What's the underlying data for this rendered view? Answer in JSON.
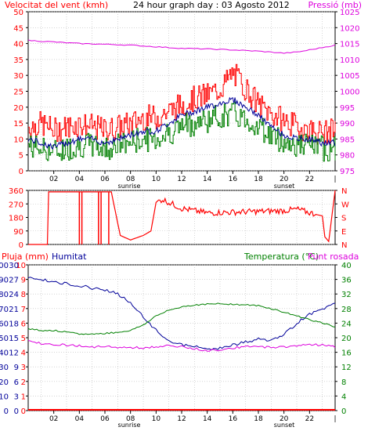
{
  "header": {
    "left_title": "Velocitat del vent (kmh)",
    "center_title": "24 hour graph day : 03 Agosto 2012",
    "right_title": "Pressió (mb)"
  },
  "panel3_header": {
    "left1": "Pluja (mm)",
    "left2": "Humitat",
    "right": "Temperatura (°C)",
    "right2": "Punt rosada"
  },
  "markers": {
    "sunrise": "sunrise",
    "sunset": "sunset"
  },
  "colors": {
    "wind_gust": "#ff0000",
    "wind_avg": "#008000",
    "pressure": "#dd00dd",
    "direction": "#ff0000",
    "humidity": "#000099",
    "temperature": "#008000",
    "dewpoint": "#dd00dd",
    "rain": "#ff0000",
    "grid": "#bbbbbb"
  },
  "chart_data": [
    {
      "type": "line",
      "title": "24 hour graph day : 03 Agosto 2012",
      "xlabel": "",
      "x_ticks": [
        "02",
        "04",
        "06",
        "08",
        "10",
        "12",
        "14",
        "16",
        "18",
        "20",
        "22"
      ],
      "y_left": {
        "label": "Velocitat del vent (kmh)",
        "range": [
          0,
          50
        ],
        "ticks": [
          "0",
          "5",
          "10",
          "15",
          "20",
          "25",
          "30",
          "35",
          "40",
          "45",
          "50"
        ]
      },
      "y_right": {
        "label": "Pressió (mb)",
        "range": [
          975,
          1025
        ],
        "ticks": [
          "975",
          "980",
          "985",
          "990",
          "995",
          "1000",
          "1005",
          "1010",
          "1015",
          "1020",
          "1025"
        ]
      },
      "series": [
        {
          "name": "Velocitat del vent (kmh)",
          "axis": "left",
          "x": [
            0,
            1,
            2,
            3,
            4,
            5,
            6,
            7,
            8,
            9,
            10,
            11,
            12,
            13,
            14,
            15,
            16,
            17,
            18,
            19,
            20,
            21,
            22,
            23,
            24
          ],
          "gust": [
            13,
            14,
            12,
            13,
            14,
            13,
            12,
            13,
            14,
            16,
            16,
            18,
            20,
            22,
            23,
            25,
            30,
            25,
            20,
            17,
            15,
            13,
            12,
            11,
            12
          ],
          "avg": [
            8,
            7,
            6,
            7,
            8,
            8,
            7,
            8,
            9,
            10,
            10,
            12,
            14,
            15,
            16,
            17,
            18,
            16,
            14,
            11,
            9,
            8,
            8,
            7,
            7
          ]
        },
        {
          "name": "Pressió (mb)",
          "axis": "right",
          "x": [
            0,
            2,
            4,
            6,
            8,
            10,
            12,
            14,
            16,
            18,
            20,
            21,
            22,
            24
          ],
          "y": [
            1016,
            1015.5,
            1015,
            1014.8,
            1014.5,
            1014,
            1013.5,
            1013.3,
            1013,
            1012.6,
            1012,
            1012.3,
            1013,
            1014.5
          ]
        }
      ]
    },
    {
      "type": "line",
      "title": "",
      "x_ticks": [
        "02",
        "04",
        "06",
        "08",
        "10",
        "12",
        "14",
        "16",
        "18",
        "20",
        "22"
      ],
      "y_left": {
        "label": "",
        "range": [
          0,
          360
        ],
        "ticks": [
          "0",
          "90",
          "180",
          "270",
          "360"
        ]
      },
      "y_right": {
        "label": "",
        "ticks": [
          "N",
          "E",
          "S",
          "W",
          "N"
        ]
      },
      "series": [
        {
          "name": "",
          "x": [
            0,
            1.5,
            1.6,
            5,
            6.5,
            7.2,
            8,
            9,
            9.6,
            10,
            10.5,
            12,
            14,
            16,
            18,
            20,
            21,
            22.5,
            23,
            23.2,
            23.5,
            24
          ],
          "y": [
            0,
            0,
            350,
            350,
            350,
            60,
            30,
            60,
            90,
            280,
            300,
            240,
            210,
            215,
            220,
            225,
            235,
            200,
            190,
            50,
            20,
            360
          ]
        }
      ]
    },
    {
      "type": "line",
      "title": "",
      "x_ticks": [
        "02",
        "04",
        "06",
        "08",
        "10",
        "12",
        "14",
        "16",
        "18",
        "20",
        "22"
      ],
      "y_left_rain": {
        "label": "Pluja (mm)",
        "range": [
          0,
          10
        ],
        "ticks": [
          "0",
          "1",
          "2",
          "3",
          "4",
          "5",
          "6",
          "7",
          "8",
          "9",
          "10"
        ]
      },
      "y_left_humidity": {
        "label": "Humitat",
        "range": [
          0,
          30
        ],
        "ticks": [
          "0",
          "3",
          "6",
          "9",
          "12",
          "15",
          "18",
          "21",
          "24",
          "27",
          "30"
        ]
      },
      "y_left_pct": {
        "label": "",
        "range": [
          0,
          100
        ],
        "ticks": [
          "0",
          "10",
          "20",
          "30",
          "40",
          "50",
          "60",
          "70",
          "80",
          "90",
          "100"
        ]
      },
      "y_right": {
        "label": "Temperatura (°C)",
        "range": [
          0,
          40
        ],
        "ticks": [
          "0",
          "4",
          "8",
          "12",
          "16",
          "20",
          "24",
          "28",
          "32",
          "36",
          "40"
        ]
      },
      "series": [
        {
          "name": "Humitat",
          "axis": "left_pct",
          "x": [
            0,
            1,
            2,
            3,
            4,
            5,
            6,
            7,
            8,
            9,
            10,
            11,
            12,
            13,
            14,
            15,
            16,
            17,
            18,
            19,
            20,
            21,
            22,
            23,
            24
          ],
          "y": [
            92,
            90,
            88,
            87,
            86,
            84,
            83,
            80,
            74,
            64,
            55,
            48,
            45,
            44,
            42,
            43,
            45,
            47,
            49,
            48,
            52,
            60,
            66,
            70,
            73
          ]
        },
        {
          "name": "Temperatura (°C)",
          "axis": "right",
          "x": [
            0,
            1,
            2,
            3,
            4,
            5,
            6,
            7,
            8,
            9,
            10,
            11,
            12,
            13,
            14,
            15,
            16,
            17,
            18,
            19,
            20,
            21,
            22,
            23,
            24
          ],
          "y": [
            22.5,
            22,
            22,
            21.5,
            21,
            21,
            21.2,
            21.5,
            22,
            23.5,
            26,
            27.5,
            28.5,
            29,
            29.2,
            29.3,
            29.2,
            29,
            28.8,
            28,
            27,
            26,
            25,
            24,
            23
          ]
        },
        {
          "name": "Punt rosada",
          "axis": "right",
          "x": [
            0,
            1,
            2,
            3,
            4,
            5,
            6,
            7,
            8,
            9,
            10,
            11,
            12,
            13,
            14,
            15,
            16,
            17,
            18,
            19,
            20,
            21,
            22,
            23,
            24
          ],
          "y": [
            19,
            18.5,
            18.2,
            18,
            17.8,
            17.5,
            17.5,
            17.4,
            17.3,
            17.2,
            17.5,
            17.8,
            17.5,
            17,
            16.5,
            16.7,
            17.2,
            17.5,
            17.5,
            17.4,
            17.5,
            17.8,
            18.2,
            18,
            17.5
          ]
        },
        {
          "name": "Pluja (mm)",
          "axis": "rain",
          "x": [
            0,
            24
          ],
          "y": [
            0,
            0
          ]
        }
      ]
    }
  ]
}
